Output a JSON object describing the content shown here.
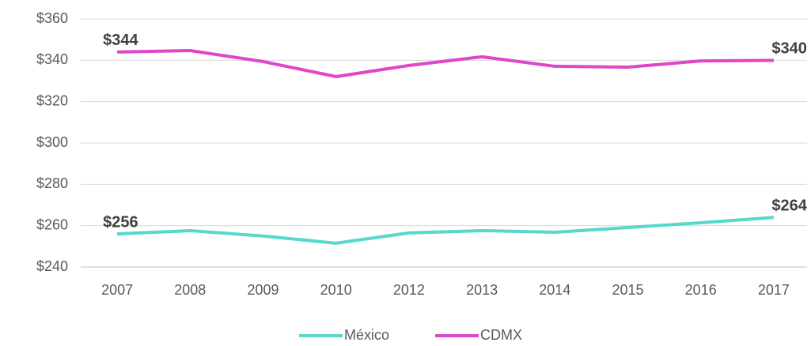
{
  "chart_data": {
    "type": "line",
    "categories": [
      "2007",
      "2008",
      "2009",
      "2010",
      "2012",
      "2013",
      "2014",
      "2015",
      "2016",
      "2017"
    ],
    "series": [
      {
        "name": "México",
        "color": "#56d8cd",
        "values": [
          256,
          257.6,
          255,
          251.5,
          256.5,
          257.6,
          256.8,
          259.1,
          261.4,
          264
        ],
        "value_labels": [
          "$256",
          null,
          null,
          null,
          null,
          null,
          null,
          null,
          null,
          "$264"
        ]
      },
      {
        "name": "CDMX",
        "color": "#e046c9",
        "values": [
          344,
          344.7,
          339.4,
          332.1,
          337.5,
          341.7,
          337.1,
          336.7,
          339.7,
          340
        ],
        "value_labels": [
          "$344",
          null,
          null,
          null,
          null,
          null,
          null,
          null,
          null,
          "$340"
        ]
      }
    ],
    "ylim": [
      240,
      360
    ],
    "yticks": [
      {
        "value": 240,
        "label": "$240"
      },
      {
        "value": 260,
        "label": "$260"
      },
      {
        "value": 280,
        "label": "$280"
      },
      {
        "value": 300,
        "label": "$300"
      },
      {
        "value": 320,
        "label": "$320"
      },
      {
        "value": 340,
        "label": "$340"
      },
      {
        "value": 360,
        "label": "$360"
      }
    ],
    "grid": true,
    "legend": "bottom"
  }
}
